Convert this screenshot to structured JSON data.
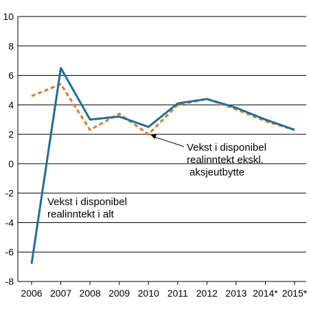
{
  "chart_data": {
    "type": "line",
    "categories": [
      "2006",
      "2007",
      "2008",
      "2009",
      "2010",
      "2011",
      "2012",
      "2013",
      "2014*",
      "2015*"
    ],
    "series": [
      {
        "values": [
          -6.8,
          6.5,
          3.0,
          3.2,
          2.5,
          4.1,
          4.4,
          3.8,
          3.0,
          2.3
        ],
        "color": "#1f6e99",
        "style": "solid"
      },
      {
        "values": [
          4.6,
          5.4,
          2.3,
          3.4,
          2.0,
          4.0,
          4.4,
          3.7,
          2.9,
          2.3
        ],
        "color": "#e8781e",
        "style": "dashed"
      }
    ],
    "ylim": [
      -8,
      10
    ],
    "yticks": [
      -8,
      -6,
      -4,
      -2,
      0,
      2,
      4,
      6,
      8,
      10
    ],
    "ytick_labels": [
      "-8",
      "-6",
      "-4",
      "-2",
      "0",
      "2",
      "4",
      "6",
      "8",
      "10"
    ],
    "grid": true,
    "grid_axis": "y",
    "annotations": {
      "total": {
        "lines": [
          "Vekst i disponibel",
          "realinntekt i alt"
        ]
      },
      "excl": {
        "lines": [
          "Vekst i disponibel",
          "realinntekt ekskl.",
          "aksjeutbytte"
        ],
        "arrow_target": {
          "category": "2010",
          "value": 2.0
        }
      }
    }
  }
}
